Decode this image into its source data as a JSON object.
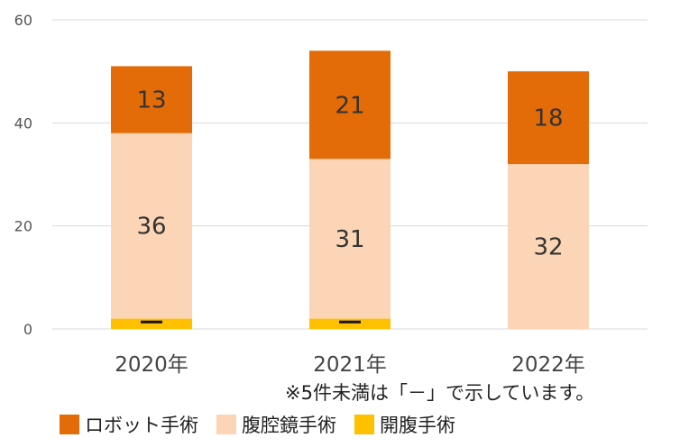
{
  "chart_data": {
    "type": "bar",
    "stacked": true,
    "categories": [
      "2020年",
      "2021年",
      "2022年"
    ],
    "series": [
      {
        "name": "開腹手術",
        "values": [
          2,
          2,
          0
        ],
        "labels": [
          "−",
          "−",
          ""
        ],
        "color": "#FFC000"
      },
      {
        "name": "腹腔鏡手術",
        "values": [
          36,
          31,
          32
        ],
        "labels": [
          "36",
          "31",
          "32"
        ],
        "color": "#FBD5B5"
      },
      {
        "name": "ロボット手術",
        "values": [
          13,
          21,
          18
        ],
        "labels": [
          "13",
          "21",
          "18"
        ],
        "color": "#E36C09"
      }
    ],
    "ylim": [
      0,
      60
    ],
    "yticks": [
      0,
      20,
      40,
      60
    ],
    "grid": true,
    "legend_position": "bottom",
    "legend_order": [
      "ロボット手術",
      "腹腔鏡手術",
      "開腹手術"
    ]
  },
  "note": "※5件未満は「－」で示しています。"
}
